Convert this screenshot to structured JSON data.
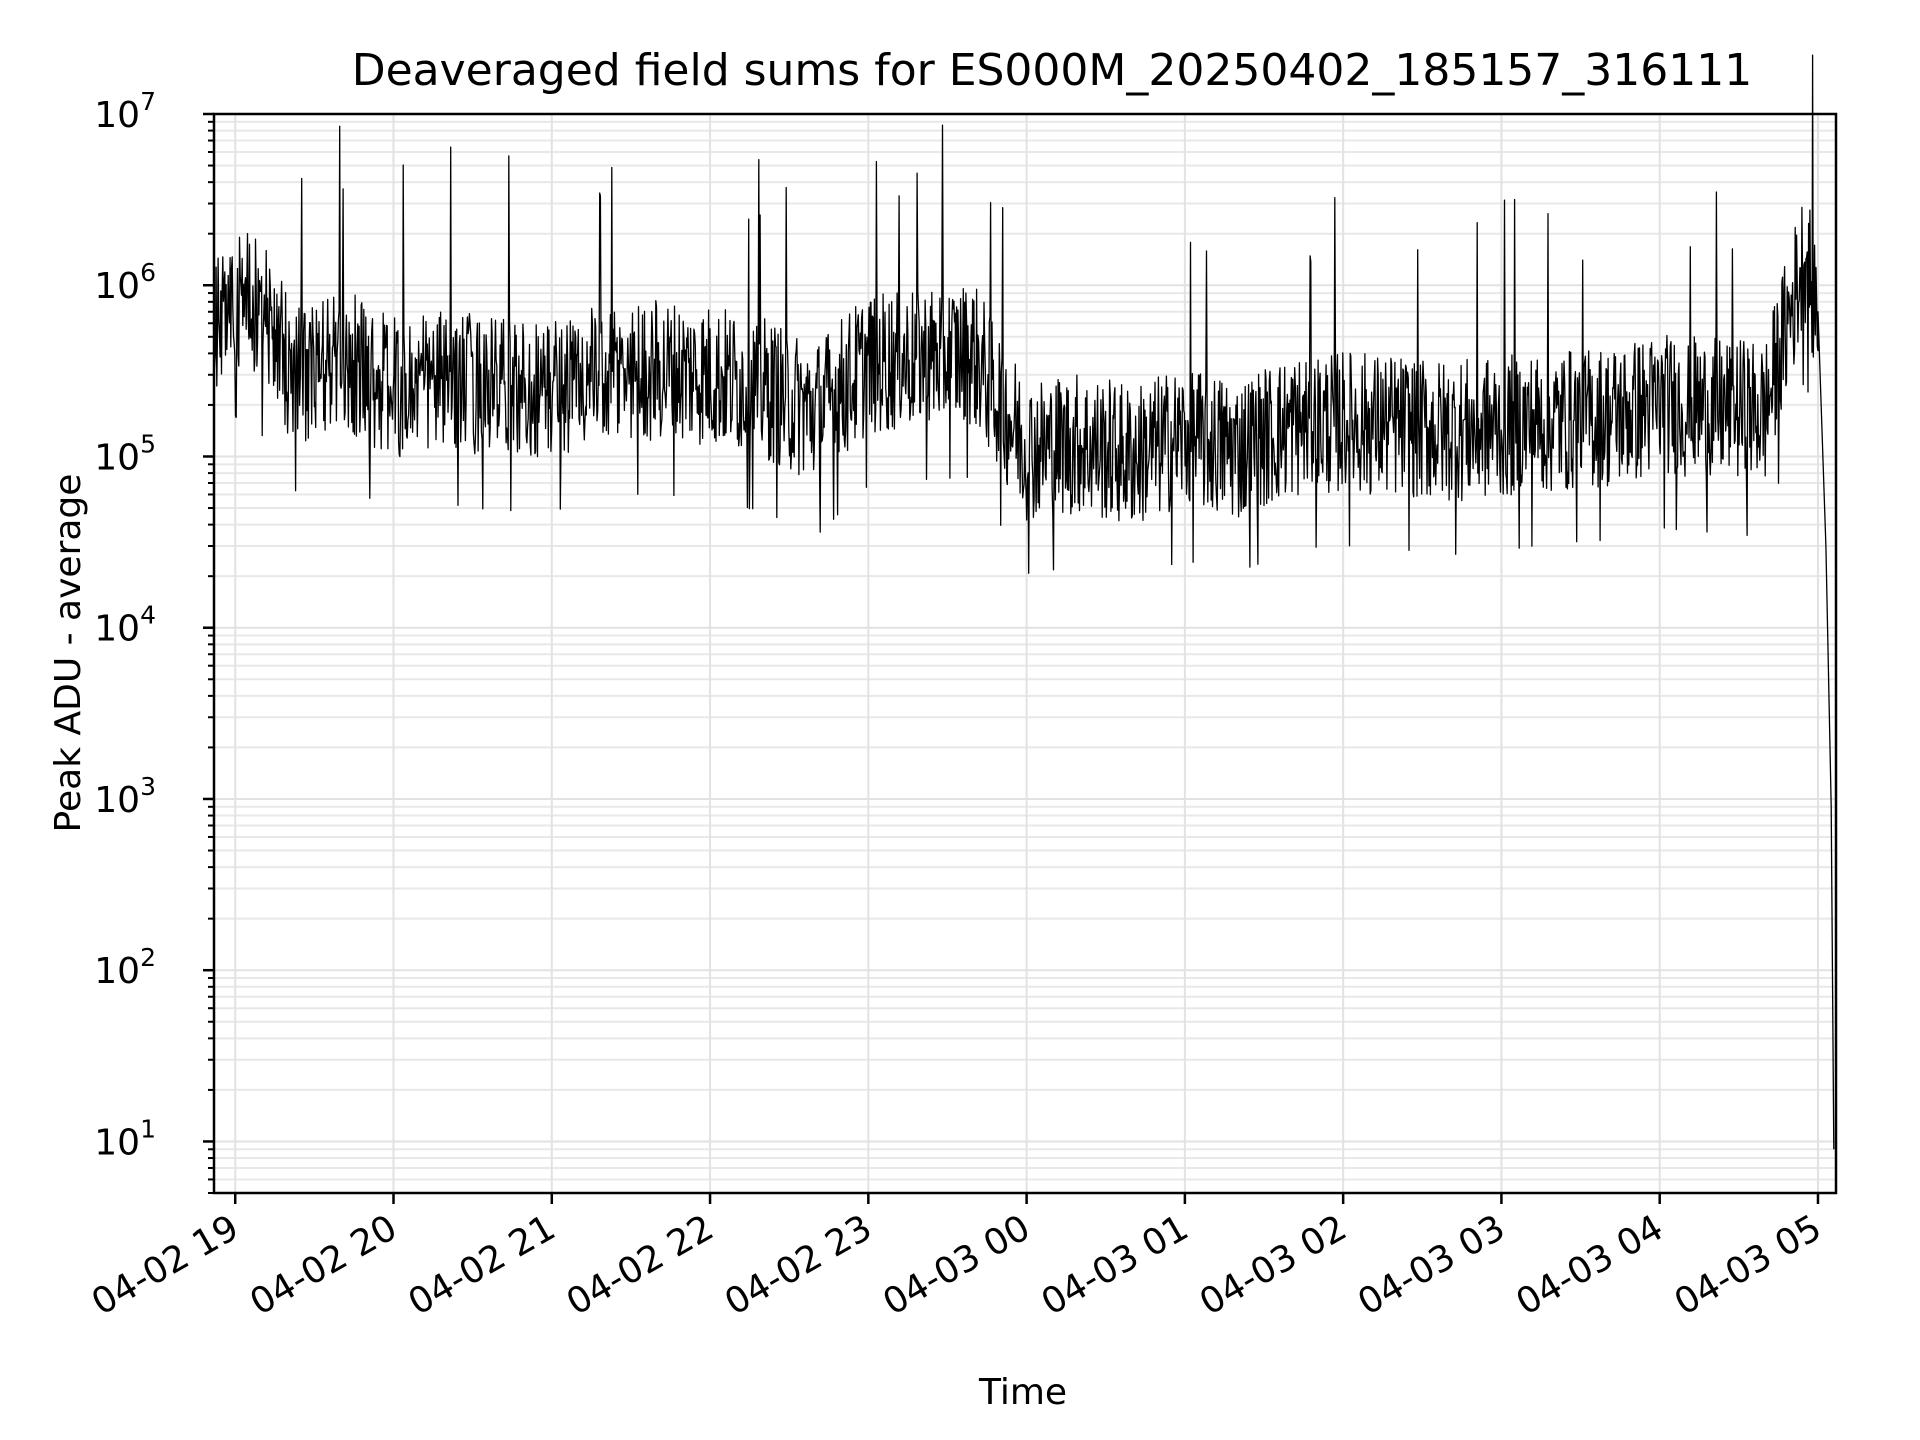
{
  "chart_data": {
    "type": "line",
    "title": "Deaveraged field sums for ES000M_20250402_185157_316111",
    "xlabel": "Time",
    "ylabel": "Peak ADU - average",
    "yscale": "log",
    "ylim": [
      5,
      10000000
    ],
    "xlim": [
      "2025-04-02 18:51:57",
      "2025-04-03 05:06:50"
    ],
    "grid": true,
    "line_color": "#000000",
    "x_ticks": [
      "04-02 19",
      "04-02 20",
      "04-02 21",
      "04-02 22",
      "04-02 23",
      "04-03 00",
      "04-03 01",
      "04-03 02",
      "04-03 03",
      "04-03 04",
      "04-03 05"
    ],
    "y_ticks": [
      {
        "base": "10",
        "exp": "1"
      },
      {
        "base": "10",
        "exp": "2"
      },
      {
        "base": "10",
        "exp": "3"
      },
      {
        "base": "10",
        "exp": "4"
      },
      {
        "base": "10",
        "exp": "5"
      },
      {
        "base": "10",
        "exp": "6"
      },
      {
        "base": "10",
        "exp": "7"
      }
    ],
    "series": [
      {
        "x": [
          "2025-04-02 18:52",
          "2025-04-02 19:00",
          "2025-04-02 19:10",
          "2025-04-02 19:20",
          "2025-04-02 19:30",
          "2025-04-02 19:40",
          "2025-04-02 19:50",
          "2025-04-02 20:00",
          "2025-04-02 20:20",
          "2025-04-02 20:40",
          "2025-04-02 21:00",
          "2025-04-02 21:20",
          "2025-04-02 21:40",
          "2025-04-02 22:00",
          "2025-04-02 22:20",
          "2025-04-02 22:40",
          "2025-04-02 23:00",
          "2025-04-02 23:20",
          "2025-04-02 23:40",
          "2025-04-03 00:00",
          "2025-04-03 00:20",
          "2025-04-03 00:40",
          "2025-04-03 01:00",
          "2025-04-03 01:20",
          "2025-04-03 01:40",
          "2025-04-03 02:00",
          "2025-04-03 02:20",
          "2025-04-03 02:40",
          "2025-04-03 03:00",
          "2025-04-03 03:20",
          "2025-04-03 03:40",
          "2025-04-03 04:00",
          "2025-04-03 04:20",
          "2025-04-03 04:40",
          "2025-04-03 04:55",
          "2025-04-03 05:00",
          "2025-04-03 05:03",
          "2025-04-03 05:05",
          "2025-04-03 05:06"
        ],
        "values": [
          500000,
          900000,
          700000,
          350000,
          300000,
          400000,
          300000,
          250000,
          280000,
          250000,
          250000,
          300000,
          320000,
          300000,
          250000,
          180000,
          350000,
          380000,
          400000,
          110000,
          120000,
          100000,
          130000,
          110000,
          150000,
          160000,
          150000,
          140000,
          150000,
          160000,
          170000,
          200000,
          190000,
          180000,
          1500000,
          700000,
          30000,
          900,
          9
        ]
      }
    ]
  }
}
